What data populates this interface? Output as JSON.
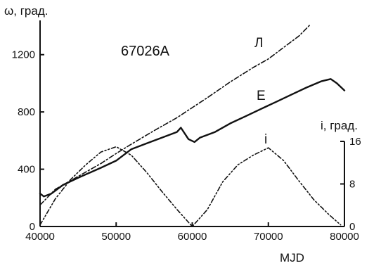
{
  "chart_data": {
    "type": "line",
    "title": "67026A",
    "xlabel": "MJD",
    "ylabel_left": "ω, град.",
    "ylabel_right": "i, град.",
    "xlim": [
      40000,
      80000
    ],
    "ylim_left": [
      0,
      1400
    ],
    "ylim_right": [
      0,
      16
    ],
    "x_ticks": [
      40000,
      50000,
      60000,
      70000,
      80000
    ],
    "y_ticks_left": [
      0,
      400,
      800,
      1200
    ],
    "y_ticks_right": [
      0,
      8,
      16
    ],
    "grid": false,
    "series": [
      {
        "name": "Л",
        "axis": "left",
        "style": "dash-dot",
        "x": [
          40000,
          42000,
          45000,
          48000,
          50000,
          52000,
          55000,
          58000,
          60000,
          62000,
          65000,
          68000,
          70000,
          72000,
          74000,
          75500
        ],
        "y": [
          150,
          260,
          350,
          440,
          510,
          575,
          670,
          760,
          830,
          900,
          1010,
          1110,
          1170,
          1250,
          1330,
          1410
        ]
      },
      {
        "name": "E",
        "axis": "left",
        "style": "solid",
        "x": [
          40000,
          40500,
          41500,
          43000,
          45000,
          48000,
          50000,
          52000,
          54000,
          56000,
          58000,
          58500,
          59500,
          60300,
          61000,
          63000,
          65000,
          67000,
          69000,
          71000,
          73000,
          75000,
          77000,
          78200,
          79000,
          80000
        ],
        "y": [
          230,
          210,
          230,
          290,
          340,
          410,
          460,
          540,
          580,
          620,
          660,
          690,
          610,
          590,
          620,
          660,
          720,
          770,
          820,
          870,
          920,
          970,
          1015,
          1030,
          1000,
          950
        ]
      },
      {
        "name": "i",
        "axis": "right",
        "style": "dash-dot-dot",
        "x": [
          40000,
          42000,
          44000,
          46000,
          48000,
          50000,
          52000,
          54000,
          56000,
          58000,
          60000,
          62000,
          64000,
          66000,
          68000,
          70000,
          72000,
          74000,
          76000,
          78000,
          79500
        ],
        "y": [
          0.3,
          5.2,
          8.8,
          11.6,
          14.0,
          15.0,
          13.4,
          10.2,
          6.6,
          3.2,
          0.0,
          3.2,
          8.4,
          11.6,
          13.4,
          14.8,
          12.4,
          8.6,
          5.0,
          2.2,
          0.3
        ]
      }
    ]
  }
}
